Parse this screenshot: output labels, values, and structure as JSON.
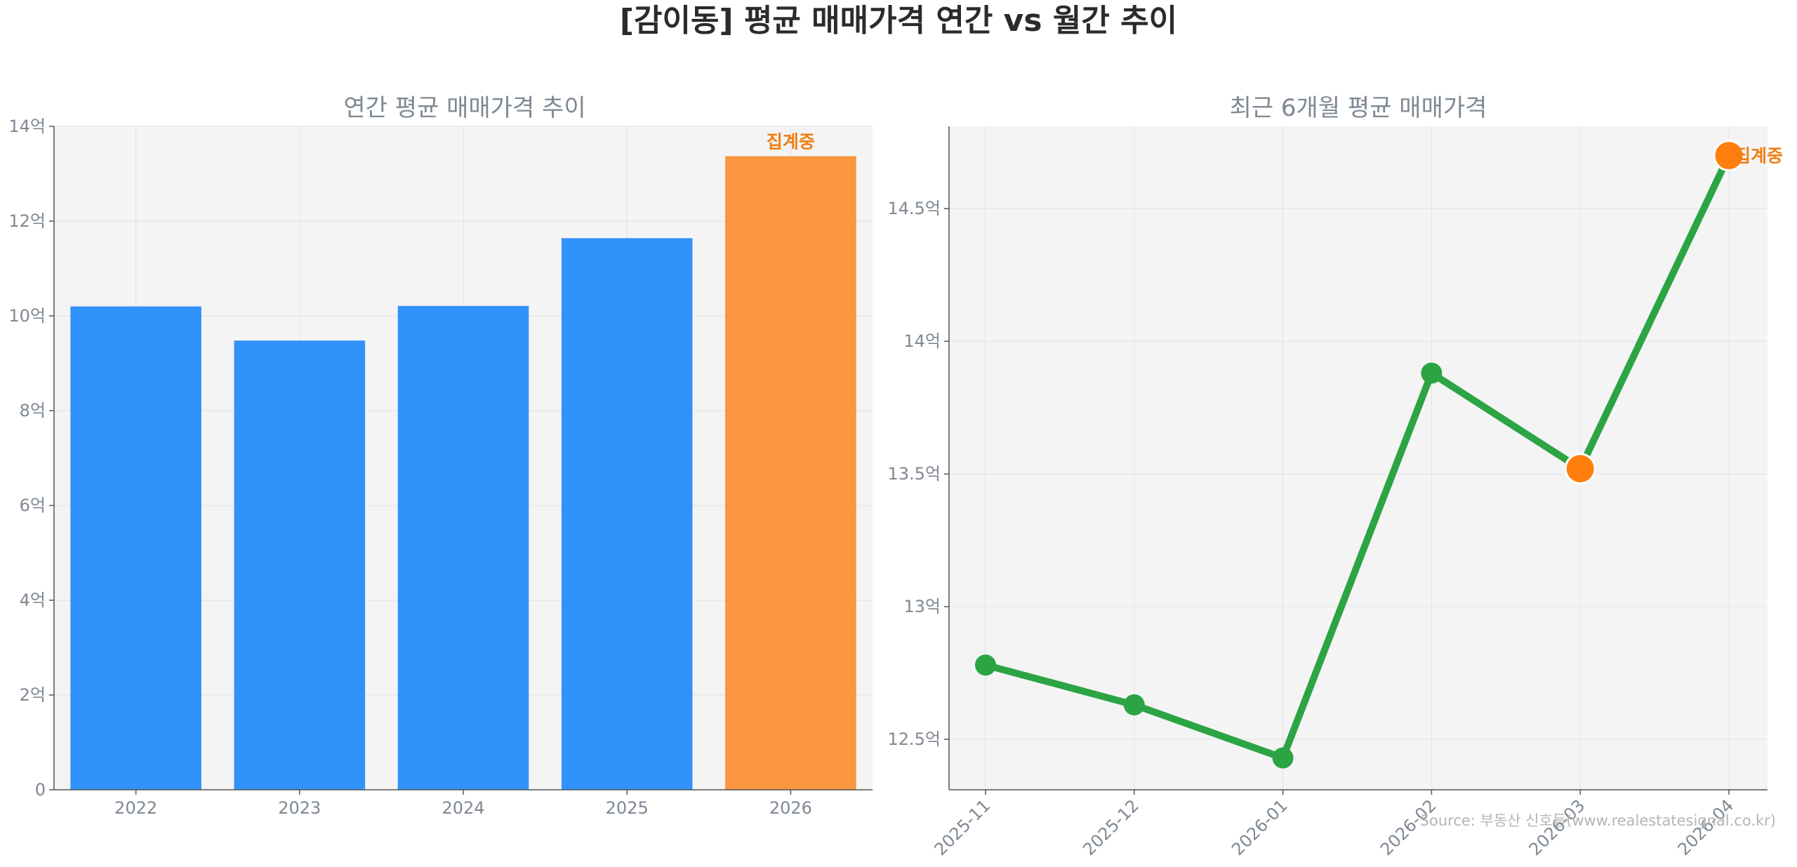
{
  "figure": {
    "suptitle": "[감이동] 평균 매매가격 연간 vs 월간 추이",
    "source": "Source: 부동산 신호등(www.realestatesignal.co.kr)"
  },
  "colors": {
    "bar_normal": "#3192fb",
    "bar_highlight": "#f9963f",
    "line": "#2ca444",
    "marker_highlight": "#ff7f0e",
    "annotation": "#f07f14",
    "panel_bg": "#f4f4f4"
  },
  "chart_data": [
    {
      "type": "bar",
      "title": "연간 평균 매매가격 추이",
      "xlabel": "",
      "ylabel": "",
      "categories": [
        "2022",
        "2023",
        "2024",
        "2025",
        "2026"
      ],
      "values": [
        10.2,
        9.48,
        10.21,
        11.64,
        13.37
      ],
      "unit": "억",
      "ylim": [
        0,
        14
      ],
      "yticks": [
        0,
        2,
        4,
        6,
        8,
        10,
        12,
        14
      ],
      "ytick_labels": [
        "0",
        "2억",
        "4억",
        "6억",
        "8억",
        "10억",
        "12억",
        "14억"
      ],
      "highlight_index": 4,
      "annotation": {
        "index": 4,
        "text": "집계중"
      },
      "grid": true
    },
    {
      "type": "line",
      "title": "최근 6개월 평균 매매가격",
      "xlabel": "",
      "ylabel": "",
      "categories": [
        "2025-11",
        "2025-12",
        "2026-01",
        "2026-02",
        "2026-03",
        "2026-04"
      ],
      "values": [
        12.78,
        12.63,
        12.43,
        13.88,
        13.52,
        14.7
      ],
      "unit": "억",
      "ylim": [
        12.31,
        14.81
      ],
      "yticks": [
        12.5,
        13,
        13.5,
        14,
        14.5
      ],
      "ytick_labels": [
        "12.5억",
        "13억",
        "13.5억",
        "14억",
        "14.5억"
      ],
      "highlight_indices": [
        4,
        5
      ],
      "annotation": {
        "index": 5,
        "text": "집계중"
      },
      "grid": true
    }
  ]
}
